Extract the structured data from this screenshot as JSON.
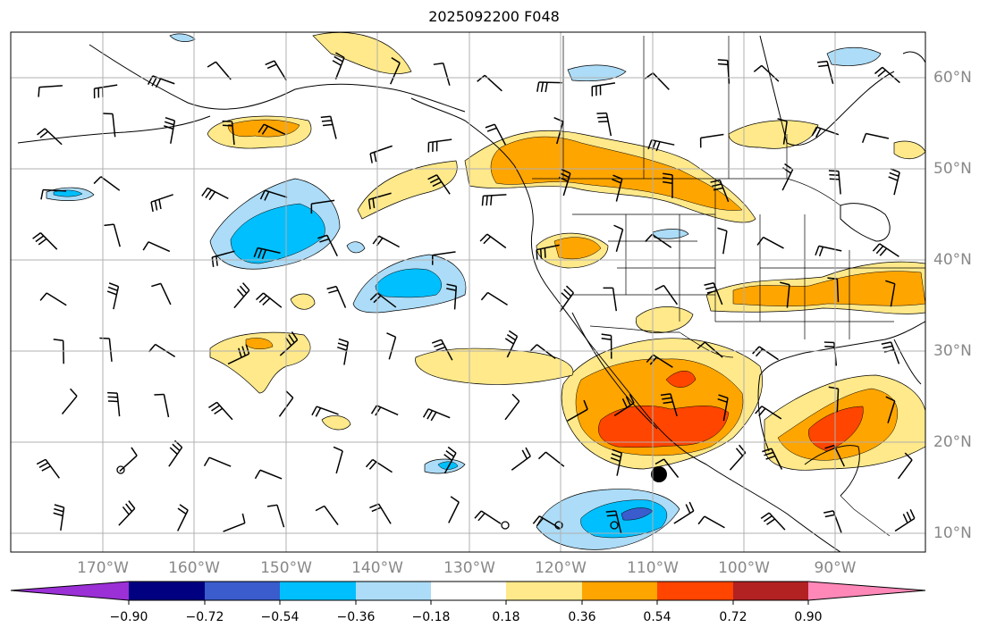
{
  "title": "2025092200 F048",
  "lon_labels": [
    "170°W",
    "160°W",
    "150°W",
    "140°W",
    "130°W",
    "120°W",
    "110°W",
    "100°W",
    "90°W"
  ],
  "lat_labels": [
    "60°N",
    "50°N",
    "40°N",
    "30°N",
    "20°N",
    "10°N"
  ],
  "colorbar": {
    "ticks": [
      "−0.90",
      "−0.72",
      "−0.54",
      "−0.36",
      "−0.18",
      "0.18",
      "0.36",
      "0.54",
      "0.72",
      "0.90"
    ],
    "colors": [
      "#9b30d6",
      "#000080",
      "#3a5ccc",
      "#00bfff",
      "#acdcf7",
      "#ffffff",
      "#ffe98a",
      "#ffa500",
      "#ff4500",
      "#b22222",
      "#ff88b8"
    ]
  },
  "field_colors": {
    "pos1": "#ffe98a",
    "pos2": "#ffa500",
    "pos3": "#ff4500",
    "neg1": "#acdcf7",
    "neg2": "#00bfff",
    "neg3": "#3a5ccc"
  },
  "marker": {
    "label": "selected-point",
    "lon": "108.8°W",
    "lat": "16.5°N"
  }
}
